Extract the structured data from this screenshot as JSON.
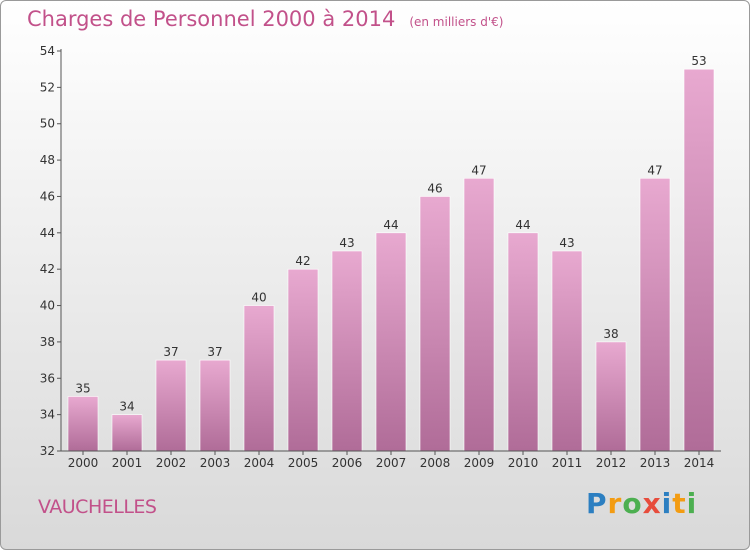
{
  "header": {
    "title": "Charges de Personnel 2000 à 2014",
    "unit": "(en milliers d'€)"
  },
  "footer": {
    "commune": "VAUCHELLES"
  },
  "logo": {
    "letters": [
      "P",
      "r",
      "o",
      "x",
      "i",
      "t",
      "i"
    ],
    "colors": [
      "#2c7fc1",
      "#f39c12",
      "#4caf50",
      "#e74c3c",
      "#2c7fc1",
      "#f39c12",
      "#4caf50"
    ]
  },
  "chart_data": {
    "type": "bar",
    "title": "Charges de Personnel 2000 à 2014",
    "subtitle": "(en milliers d'€)",
    "categories": [
      "2000",
      "2001",
      "2002",
      "2003",
      "2004",
      "2005",
      "2006",
      "2007",
      "2008",
      "2009",
      "2010",
      "2011",
      "2012",
      "2013",
      "2014"
    ],
    "values": [
      35,
      34,
      37,
      37,
      40,
      42,
      43,
      44,
      46,
      47,
      44,
      43,
      38,
      47,
      53
    ],
    "ylim": [
      32,
      54
    ],
    "yticks": [
      32,
      34,
      36,
      38,
      40,
      42,
      44,
      46,
      48,
      50,
      52,
      54
    ],
    "grid": false,
    "colors": {
      "bar_top": "#e8a9d0",
      "bar_bottom": "#b06c98",
      "axis": "#555555"
    }
  }
}
